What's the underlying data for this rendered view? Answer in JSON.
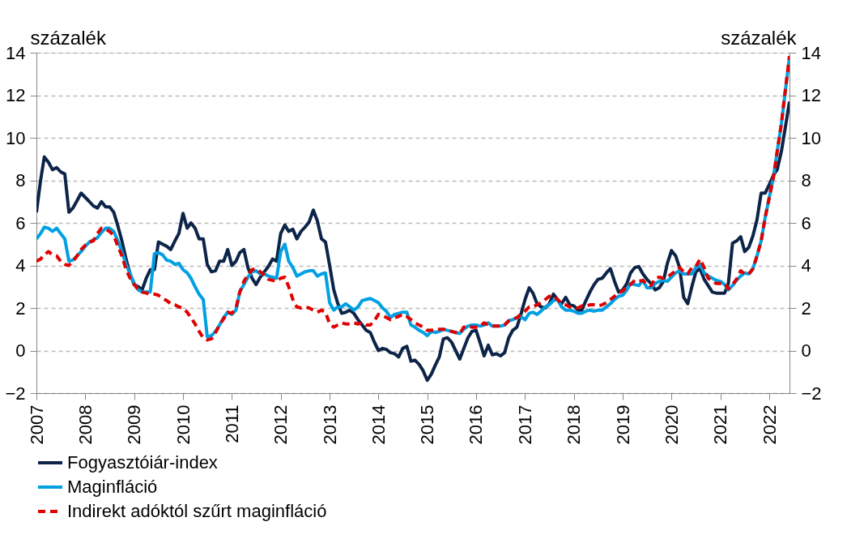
{
  "chart_data": {
    "type": "line",
    "ylabel": "százalék",
    "y2label": "százalék",
    "x": [
      "2007-01",
      "2007-02",
      "2007-03",
      "2007-04",
      "2007-05",
      "2007-06",
      "2007-07",
      "2007-08",
      "2007-09",
      "2007-10",
      "2007-11",
      "2007-12",
      "2008-01",
      "2008-02",
      "2008-03",
      "2008-04",
      "2008-05",
      "2008-06",
      "2008-07",
      "2008-08",
      "2008-09",
      "2008-10",
      "2008-11",
      "2008-12",
      "2009-01",
      "2009-02",
      "2009-03",
      "2009-04",
      "2009-05",
      "2009-06",
      "2009-07",
      "2009-08",
      "2009-09",
      "2009-10",
      "2009-11",
      "2009-12",
      "2010-01",
      "2010-02",
      "2010-03",
      "2010-04",
      "2010-05",
      "2010-06",
      "2010-07",
      "2010-08",
      "2010-09",
      "2010-10",
      "2010-11",
      "2010-12",
      "2011-01",
      "2011-02",
      "2011-03",
      "2011-04",
      "2011-05",
      "2011-06",
      "2011-07",
      "2011-08",
      "2011-09",
      "2011-10",
      "2011-11",
      "2011-12",
      "2012-01",
      "2012-02",
      "2012-03",
      "2012-04",
      "2012-05",
      "2012-06",
      "2012-07",
      "2012-08",
      "2012-09",
      "2012-10",
      "2012-11",
      "2012-12",
      "2013-01",
      "2013-02",
      "2013-03",
      "2013-04",
      "2013-05",
      "2013-06",
      "2013-07",
      "2013-08",
      "2013-09",
      "2013-10",
      "2013-11",
      "2013-12",
      "2014-01",
      "2014-02",
      "2014-03",
      "2014-04",
      "2014-05",
      "2014-06",
      "2014-07",
      "2014-08",
      "2014-09",
      "2014-10",
      "2014-11",
      "2014-12",
      "2015-01",
      "2015-02",
      "2015-03",
      "2015-04",
      "2015-05",
      "2015-06",
      "2015-07",
      "2015-08",
      "2015-09",
      "2015-10",
      "2015-11",
      "2015-12",
      "2016-01",
      "2016-02",
      "2016-03",
      "2016-04",
      "2016-05",
      "2016-06",
      "2016-07",
      "2016-08",
      "2016-09",
      "2016-10",
      "2016-11",
      "2016-12",
      "2017-01",
      "2017-02",
      "2017-03",
      "2017-04",
      "2017-05",
      "2017-06",
      "2017-07",
      "2017-08",
      "2017-09",
      "2017-10",
      "2017-11",
      "2017-12",
      "2018-01",
      "2018-02",
      "2018-03",
      "2018-04",
      "2018-05",
      "2018-06",
      "2018-07",
      "2018-08",
      "2018-09",
      "2018-10",
      "2018-11",
      "2018-12",
      "2019-01",
      "2019-02",
      "2019-03",
      "2019-04",
      "2019-05",
      "2019-06",
      "2019-07",
      "2019-08",
      "2019-09",
      "2019-10",
      "2019-11",
      "2019-12",
      "2020-01",
      "2020-02",
      "2020-03",
      "2020-04",
      "2020-05",
      "2020-06",
      "2020-07",
      "2020-08",
      "2020-09",
      "2020-10",
      "2020-11",
      "2020-12",
      "2021-01",
      "2021-02",
      "2021-03",
      "2021-04",
      "2021-05",
      "2021-06",
      "2021-07",
      "2021-08",
      "2021-09",
      "2021-10",
      "2021-11",
      "2021-12",
      "2022-01",
      "2022-02",
      "2022-03",
      "2022-04",
      "2022-05",
      "2022-06"
    ],
    "series": [
      {
        "name": "Fogyasztóiár-index",
        "color": "#0d2449",
        "line_style": "solid",
        "values": [
          6.5,
          8.0,
          9.1,
          8.85,
          8.5,
          8.6,
          8.4,
          8.3,
          6.5,
          6.7,
          7.05,
          7.4,
          7.2,
          7.0,
          6.8,
          6.7,
          7.0,
          6.75,
          6.75,
          6.5,
          5.85,
          5.15,
          4.3,
          3.6,
          3.1,
          3.0,
          2.85,
          3.4,
          3.8,
          3.8,
          5.1,
          5.0,
          4.9,
          4.75,
          5.15,
          5.5,
          6.45,
          5.75,
          6.0,
          5.75,
          5.25,
          5.25,
          4.05,
          3.7,
          3.75,
          4.2,
          4.2,
          4.75,
          4.0,
          4.2,
          4.6,
          4.75,
          3.9,
          3.4,
          3.1,
          3.45,
          3.7,
          3.95,
          4.3,
          4.2,
          5.5,
          5.9,
          5.6,
          5.7,
          5.25,
          5.6,
          5.8,
          6.05,
          6.6,
          6.1,
          5.25,
          5.1,
          4.0,
          2.85,
          2.25,
          1.75,
          1.8,
          1.9,
          1.75,
          1.45,
          1.2,
          0.95,
          0.85,
          0.4,
          0.0,
          0.1,
          0.05,
          -0.1,
          -0.15,
          -0.3,
          0.1,
          0.2,
          -0.5,
          -0.45,
          -0.65,
          -0.95,
          -1.4,
          -1.1,
          -0.7,
          -0.3,
          0.55,
          0.6,
          0.4,
          0.0,
          -0.4,
          0.1,
          0.6,
          0.9,
          0.95,
          0.35,
          -0.25,
          0.25,
          -0.2,
          -0.15,
          -0.25,
          -0.1,
          0.6,
          0.95,
          1.1,
          1.7,
          2.4,
          2.95,
          2.7,
          2.2,
          2.05,
          2.0,
          2.2,
          2.65,
          2.4,
          2.2,
          2.5,
          2.15,
          2.1,
          1.9,
          1.9,
          2.35,
          2.75,
          3.1,
          3.35,
          3.4,
          3.65,
          3.85,
          3.25,
          2.75,
          2.85,
          3.15,
          3.65,
          3.9,
          3.95,
          3.6,
          3.35,
          3.15,
          2.85,
          2.95,
          3.25,
          4.1,
          4.7,
          4.45,
          3.9,
          2.5,
          2.2,
          3.0,
          3.7,
          3.85,
          3.35,
          3.05,
          2.75,
          2.7,
          2.7,
          2.7,
          3.15,
          5.05,
          5.15,
          5.35,
          4.65,
          4.85,
          5.4,
          6.15,
          7.4,
          7.4,
          7.8,
          8.25,
          8.5,
          9.35,
          10.5,
          11.7
        ]
      },
      {
        "name": "Maginfláció",
        "color": "#00a0e3",
        "line_style": "solid",
        "values": [
          5.25,
          5.5,
          5.8,
          5.75,
          5.6,
          5.75,
          5.5,
          5.25,
          4.2,
          4.25,
          4.45,
          4.65,
          4.9,
          5.1,
          5.2,
          5.3,
          5.55,
          5.75,
          5.75,
          5.6,
          5.15,
          4.65,
          4.05,
          3.6,
          3.15,
          2.85,
          2.75,
          2.75,
          2.75,
          4.55,
          4.6,
          4.5,
          4.25,
          4.2,
          4.05,
          4.1,
          3.8,
          3.65,
          3.4,
          3.0,
          2.65,
          2.4,
          0.65,
          0.7,
          0.9,
          1.2,
          1.55,
          1.8,
          1.7,
          1.9,
          2.75,
          3.1,
          3.45,
          3.7,
          3.75,
          3.6,
          3.6,
          3.5,
          3.45,
          3.4,
          4.65,
          5.0,
          4.2,
          3.9,
          3.5,
          3.6,
          3.7,
          3.75,
          3.75,
          3.5,
          3.6,
          3.65,
          2.25,
          1.9,
          2.05,
          2.05,
          2.2,
          2.05,
          1.9,
          2.05,
          2.35,
          2.4,
          2.45,
          2.35,
          2.25,
          2.0,
          1.85,
          1.55,
          1.7,
          1.75,
          1.8,
          1.8,
          1.2,
          1.1,
          0.95,
          0.85,
          0.7,
          0.9,
          0.85,
          0.9,
          1.0,
          0.95,
          0.9,
          0.85,
          0.8,
          1.0,
          1.15,
          1.2,
          1.2,
          1.15,
          1.2,
          1.3,
          1.15,
          1.15,
          1.15,
          1.2,
          1.4,
          1.45,
          1.55,
          1.6,
          1.45,
          1.75,
          1.8,
          1.7,
          1.85,
          2.05,
          2.15,
          2.35,
          2.4,
          2.05,
          1.9,
          1.9,
          1.85,
          1.75,
          1.75,
          1.85,
          1.9,
          1.85,
          1.9,
          1.9,
          2.05,
          2.2,
          2.4,
          2.55,
          2.6,
          2.85,
          3.15,
          3.1,
          3.05,
          3.3,
          2.95,
          2.95,
          3.15,
          3.25,
          3.3,
          3.25,
          3.45,
          3.65,
          3.75,
          3.6,
          3.6,
          3.6,
          3.9,
          4.05,
          3.65,
          3.5,
          3.4,
          3.3,
          3.25,
          3.1,
          2.85,
          3.05,
          3.3,
          3.5,
          3.65,
          3.6,
          3.85,
          4.45,
          5.15,
          6.25,
          7.2,
          8.15,
          9.35,
          10.65,
          12.2,
          13.8
        ]
      },
      {
        "name": "Indirekt adóktól szűrt maginfláció",
        "color": "#e00000",
        "line_style": "dashed",
        "values": [
          4.2,
          4.3,
          4.5,
          4.65,
          4.5,
          4.45,
          4.2,
          4.05,
          4.0,
          4.2,
          4.45,
          4.75,
          4.95,
          5.1,
          5.15,
          5.5,
          5.75,
          5.7,
          5.6,
          5.4,
          4.9,
          4.45,
          3.8,
          3.4,
          3.1,
          2.85,
          2.75,
          2.7,
          2.65,
          2.65,
          2.6,
          2.45,
          2.35,
          2.2,
          2.15,
          2.05,
          2.0,
          1.8,
          1.55,
          1.25,
          0.9,
          0.6,
          0.5,
          0.55,
          0.85,
          1.2,
          1.5,
          1.8,
          1.75,
          2.0,
          2.75,
          3.25,
          3.55,
          3.8,
          3.85,
          3.7,
          3.55,
          3.35,
          3.3,
          3.25,
          3.4,
          3.45,
          3.0,
          2.4,
          2.05,
          2.0,
          2.05,
          2.0,
          1.9,
          1.8,
          1.9,
          1.8,
          1.25,
          1.1,
          1.2,
          1.3,
          1.25,
          1.25,
          1.3,
          1.25,
          1.3,
          1.2,
          1.2,
          1.4,
          1.7,
          1.65,
          1.55,
          1.45,
          1.55,
          1.6,
          1.7,
          1.6,
          1.45,
          1.3,
          1.2,
          1.1,
          0.95,
          0.95,
          1.0,
          1.0,
          1.0,
          0.95,
          0.9,
          0.85,
          0.8,
          1.1,
          1.15,
          1.1,
          1.1,
          1.15,
          1.3,
          1.2,
          1.15,
          1.15,
          1.15,
          1.2,
          1.4,
          1.45,
          1.55,
          1.7,
          1.85,
          2.05,
          2.05,
          2.15,
          2.25,
          2.4,
          2.55,
          2.55,
          2.4,
          2.2,
          2.15,
          2.05,
          2.0,
          2.0,
          2.1,
          2.1,
          2.15,
          2.15,
          2.1,
          2.15,
          2.25,
          2.4,
          2.55,
          2.7,
          2.8,
          3.0,
          3.1,
          3.3,
          3.25,
          3.3,
          3.1,
          3.05,
          3.4,
          3.45,
          3.4,
          3.45,
          3.6,
          3.75,
          3.9,
          3.7,
          3.6,
          3.9,
          3.95,
          4.3,
          3.9,
          3.4,
          3.25,
          3.15,
          3.15,
          3.15,
          2.9,
          3.1,
          3.35,
          3.75,
          3.6,
          3.6,
          3.85,
          4.45,
          5.15,
          6.25,
          7.2,
          8.15,
          9.35,
          10.65,
          12.25,
          13.85
        ]
      }
    ],
    "xlim": [
      "2007-01",
      "2022-06"
    ],
    "xticks": [
      "2007",
      "2008",
      "2009",
      "2010",
      "2011",
      "2012",
      "2013",
      "2014",
      "2015",
      "2016",
      "2017",
      "2018",
      "2019",
      "2020",
      "2021",
      "2022"
    ],
    "ylim": [
      -2,
      14
    ],
    "yticks": [
      -2,
      0,
      2,
      4,
      6,
      8,
      10,
      12,
      14
    ],
    "y2lim": [
      -2,
      14
    ],
    "y2ticks": [
      -2,
      0,
      2,
      4,
      6,
      8,
      10,
      12,
      14
    ],
    "grid": "y",
    "legend": "bottom"
  }
}
